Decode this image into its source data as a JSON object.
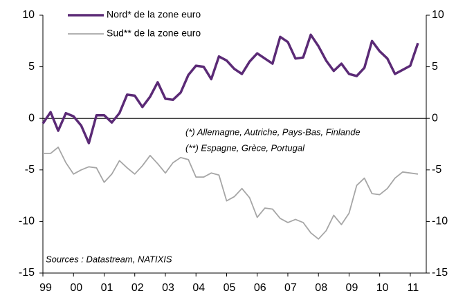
{
  "chart_data": {
    "type": "line",
    "categories": [
      "99",
      null,
      null,
      null,
      "00",
      null,
      null,
      null,
      "01",
      null,
      null,
      null,
      "02",
      null,
      null,
      null,
      "03",
      null,
      null,
      null,
      "04",
      null,
      null,
      null,
      "05",
      null,
      null,
      null,
      "06",
      null,
      null,
      null,
      "07",
      null,
      null,
      null,
      "08",
      null,
      null,
      null,
      "09",
      null,
      null,
      null,
      "10",
      null,
      null,
      null,
      "11",
      null
    ],
    "series": [
      {
        "name": "Nord* de la zone euro",
        "color": "#5b2a76",
        "axis": "y",
        "values": [
          -0.5,
          0.6,
          -1.2,
          0.5,
          0.2,
          -0.7,
          -2.4,
          0.3,
          0.3,
          -0.4,
          0.5,
          2.3,
          2.2,
          1.1,
          2.1,
          3.5,
          1.9,
          1.8,
          2.5,
          4.2,
          5.1,
          5.0,
          3.8,
          6.0,
          5.6,
          4.8,
          4.3,
          5.5,
          6.3,
          5.8,
          5.3,
          7.9,
          7.4,
          5.8,
          5.9,
          8.1,
          7.0,
          5.6,
          4.6,
          5.3,
          4.3,
          4.1,
          4.9,
          7.5,
          6.5,
          5.8,
          4.3,
          4.7,
          5.1,
          7.3
        ]
      },
      {
        "name": "Sud** de la zone euro",
        "color": "#a6a6a6",
        "axis": "y",
        "values": [
          -3.4,
          -3.4,
          -2.8,
          -4.3,
          -5.4,
          -5.0,
          -4.7,
          -4.8,
          -6.2,
          -5.4,
          -4.1,
          -4.8,
          -5.4,
          -4.6,
          -3.6,
          -4.4,
          -5.3,
          -4.3,
          -3.8,
          -4.0,
          -5.7,
          -5.7,
          -5.3,
          -5.5,
          -8.0,
          -7.6,
          -6.8,
          -7.7,
          -9.6,
          -8.7,
          -8.8,
          -9.7,
          -10.1,
          -9.8,
          -10.1,
          -11.1,
          -11.7,
          -10.9,
          -9.4,
          -10.3,
          -9.2,
          -6.5,
          -5.8,
          -7.3,
          -7.4,
          -6.8,
          -5.8,
          -5.2,
          -5.3,
          -5.4
        ]
      }
    ],
    "ylim": [
      -15,
      10
    ],
    "yticks": [
      -15,
      -10,
      -5,
      0,
      5,
      10
    ],
    "y2lim": [
      -15,
      10
    ],
    "y2ticks": [
      -15,
      -10,
      -5,
      0,
      5,
      10
    ],
    "annotations": [
      "(*) Allemagne, Autriche, Pays-Bas, Finlande",
      "(**) Espagne, Grèce, Portugal"
    ],
    "source": "Sources : Datastream, NATIXIS"
  }
}
